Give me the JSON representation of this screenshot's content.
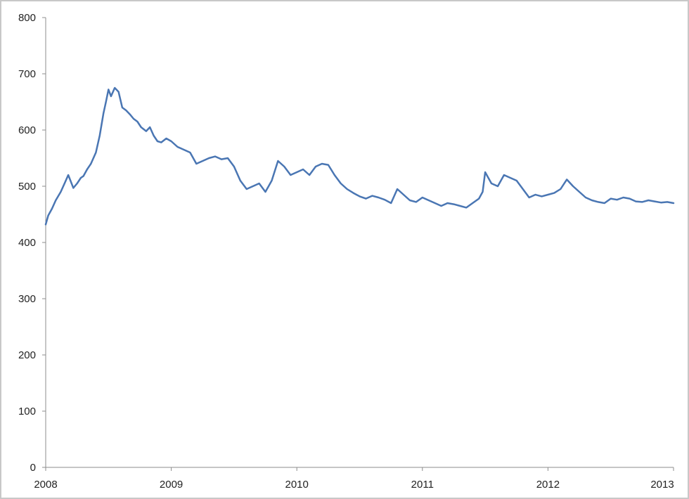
{
  "chart_data": {
    "type": "line",
    "title": "",
    "xlabel": "",
    "ylabel": "",
    "ylim": [
      0,
      800
    ],
    "xlim": [
      2008,
      2013
    ],
    "y_ticks": [
      0,
      100,
      200,
      300,
      400,
      500,
      600,
      700,
      800
    ],
    "x_ticks": [
      2008,
      2009,
      2010,
      2011,
      2012,
      2013
    ],
    "y_tick_labels": [
      "0",
      "100",
      "200",
      "300",
      "400",
      "500",
      "600",
      "700",
      "800"
    ],
    "x_tick_labels": [
      "2008",
      "2009",
      "2010",
      "2011",
      "2012",
      "2013"
    ],
    "grid": false,
    "legend": "none",
    "series": [
      {
        "color": "#4a76b3",
        "x": [
          2008.0,
          2008.02,
          2008.05,
          2008.08,
          2008.12,
          2008.15,
          2008.18,
          2008.22,
          2008.25,
          2008.28,
          2008.3,
          2008.33,
          2008.36,
          2008.4,
          2008.43,
          2008.46,
          2008.48,
          2008.5,
          2008.52,
          2008.55,
          2008.58,
          2008.61,
          2008.64,
          2008.67,
          2008.7,
          2008.73,
          2008.76,
          2008.8,
          2008.83,
          2008.86,
          2008.89,
          2008.92,
          2008.96,
          2009.0,
          2009.05,
          2009.1,
          2009.15,
          2009.2,
          2009.25,
          2009.3,
          2009.35,
          2009.4,
          2009.45,
          2009.5,
          2009.55,
          2009.6,
          2009.65,
          2009.7,
          2009.75,
          2009.8,
          2009.85,
          2009.9,
          2009.95,
          2010.0,
          2010.05,
          2010.1,
          2010.15,
          2010.2,
          2010.25,
          2010.3,
          2010.35,
          2010.4,
          2010.45,
          2010.5,
          2010.55,
          2010.6,
          2010.65,
          2010.7,
          2010.75,
          2010.8,
          2010.85,
          2010.9,
          2010.95,
          2011.0,
          2011.05,
          2011.1,
          2011.15,
          2011.2,
          2011.25,
          2011.3,
          2011.35,
          2011.4,
          2011.45,
          2011.48,
          2011.5,
          2011.55,
          2011.6,
          2011.65,
          2011.7,
          2011.75,
          2011.8,
          2011.85,
          2011.9,
          2011.95,
          2012.0,
          2012.05,
          2012.1,
          2012.15,
          2012.2,
          2012.25,
          2012.3,
          2012.35,
          2012.4,
          2012.45,
          2012.5,
          2012.55,
          2012.6,
          2012.65,
          2012.7,
          2012.75,
          2012.8,
          2012.85,
          2012.9,
          2012.95,
          2013.0
        ],
        "y": [
          432,
          448,
          460,
          475,
          490,
          505,
          520,
          497,
          505,
          515,
          518,
          530,
          540,
          560,
          590,
          630,
          650,
          672,
          660,
          675,
          668,
          640,
          635,
          628,
          620,
          615,
          605,
          598,
          605,
          590,
          580,
          578,
          585,
          580,
          570,
          565,
          560,
          540,
          545,
          550,
          553,
          548,
          550,
          535,
          510,
          495,
          500,
          505,
          490,
          510,
          545,
          535,
          520,
          525,
          530,
          520,
          535,
          540,
          538,
          520,
          505,
          495,
          488,
          482,
          478,
          483,
          480,
          476,
          470,
          495,
          485,
          475,
          472,
          480,
          475,
          470,
          465,
          470,
          468,
          465,
          462,
          470,
          478,
          490,
          525,
          505,
          500,
          520,
          515,
          510,
          495,
          480,
          485,
          482,
          485,
          488,
          495,
          512,
          500,
          490,
          480,
          475,
          472,
          470,
          478,
          476,
          480,
          478,
          473,
          472,
          475,
          473,
          471,
          472,
          470
        ]
      }
    ]
  }
}
